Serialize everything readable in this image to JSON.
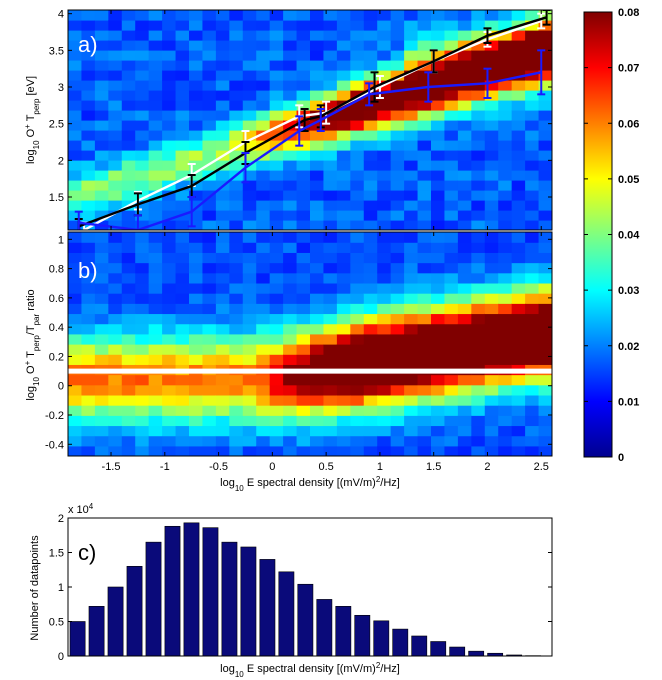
{
  "chart_data": [
    {
      "type": "heatmap",
      "panel_label": "a)",
      "xlim": [
        -1.9,
        2.6
      ],
      "ylim": [
        1.05,
        4.05
      ],
      "xticks": [
        -1.5,
        -1,
        -0.5,
        0,
        0.5,
        1,
        1.5,
        2,
        2.5
      ],
      "xtick_labels": [
        "-1.5",
        "-1",
        "-0.5",
        "0",
        "0.5",
        "1",
        "1.5",
        "2",
        "2.5"
      ],
      "yticks": [
        1.5,
        2,
        2.5,
        3,
        3.5,
        4
      ],
      "ytick_labels": [
        "1.5",
        "2",
        "2.5",
        "3",
        "3.5",
        "4"
      ],
      "ylabel_parts": [
        "log",
        "10",
        " O",
        "+",
        " T",
        "perp",
        " [eV]"
      ],
      "series": [
        {
          "color": "#ffffff",
          "x": [
            -1.75,
            -1.25,
            -0.75,
            -0.25,
            0.25,
            0.5,
            1.0,
            1.5,
            2.0,
            2.5
          ],
          "y": [
            1.05,
            1.45,
            1.8,
            2.25,
            2.6,
            2.65,
            3.0,
            3.35,
            3.65,
            3.9
          ],
          "err": [
            0.1,
            0.12,
            0.15,
            0.15,
            0.15,
            0.15,
            0.15,
            0.15,
            0.1,
            0.1
          ]
        },
        {
          "color": "#000000",
          "x": [
            -1.8,
            -1.25,
            -0.75,
            -0.25,
            0.3,
            0.45,
            0.95,
            1.5,
            2.0,
            2.55
          ],
          "y": [
            1.1,
            1.4,
            1.65,
            2.1,
            2.55,
            2.6,
            3.0,
            3.35,
            3.7,
            3.95
          ],
          "err": [
            0.1,
            0.15,
            0.15,
            0.15,
            0.15,
            0.15,
            0.2,
            0.15,
            0.1,
            0.1
          ]
        },
        {
          "color": "#1a1aff",
          "x": [
            -1.8,
            -1.25,
            -0.75,
            -0.25,
            0.25,
            0.45,
            0.9,
            1.45,
            2.0,
            2.5
          ],
          "y": [
            1.15,
            1.05,
            1.3,
            1.9,
            2.4,
            2.55,
            2.9,
            3.0,
            3.05,
            3.2
          ],
          "err": [
            0.15,
            0.2,
            0.2,
            0.2,
            0.2,
            0.15,
            0.15,
            0.2,
            0.2,
            0.3
          ]
        }
      ]
    },
    {
      "type": "heatmap",
      "panel_label": "b)",
      "xlim": [
        -1.9,
        2.6
      ],
      "ylim": [
        -0.48,
        1.05
      ],
      "xticks": [
        -1.5,
        -1,
        -0.5,
        0,
        0.5,
        1,
        1.5,
        2,
        2.5
      ],
      "xtick_labels": [
        "-1.5",
        "-1",
        "-0.5",
        "0",
        "0.5",
        "1",
        "1.5",
        "2",
        "2.5"
      ],
      "yticks": [
        -0.4,
        -0.2,
        0,
        0.2,
        0.4,
        0.6,
        0.8,
        1
      ],
      "ytick_labels": [
        "-0.4",
        "-0.2",
        "0",
        "0.2",
        "0.4",
        "0.6",
        "0.8",
        "1"
      ],
      "ylabel_parts": [
        "log",
        "10",
        " O",
        "+",
        " T",
        "perp",
        "/T",
        "par",
        " ratio"
      ],
      "xlabel_parts": [
        "log",
        "10",
        " E spectral density [(mV/m)",
        "2",
        "/Hz]"
      ],
      "hline": 0.1
    },
    {
      "type": "bar",
      "panel_label": "c)",
      "ylim": [
        0,
        20000
      ],
      "yticks": [
        0,
        0.5,
        1,
        1.5,
        2
      ],
      "ytick_labels": [
        "0",
        "0.5",
        "1",
        "1.5",
        "2"
      ],
      "y_exponent_label": [
        "x 10",
        "4"
      ],
      "ylabel": "Number of datapoints",
      "xlabel_parts": [
        "log",
        "10",
        " E spectral density [(mV/m)",
        "2",
        "/Hz]"
      ],
      "values": [
        5000,
        7200,
        10000,
        13000,
        16500,
        18800,
        19300,
        18600,
        16500,
        15800,
        14000,
        12200,
        10400,
        8200,
        7200,
        5900,
        5100,
        3900,
        2900,
        2100,
        1300,
        700,
        400,
        150,
        50
      ]
    }
  ],
  "colorbar": {
    "vmin": 0,
    "vmax": 0.08,
    "ticks": [
      0,
      0.01,
      0.02,
      0.03,
      0.04,
      0.05,
      0.06,
      0.07,
      0.08
    ],
    "tick_labels": [
      "0",
      "0.01",
      "0.02",
      "0.03",
      "0.04",
      "0.05",
      "0.06",
      "0.07",
      "0.08"
    ],
    "colormap": "jet"
  }
}
